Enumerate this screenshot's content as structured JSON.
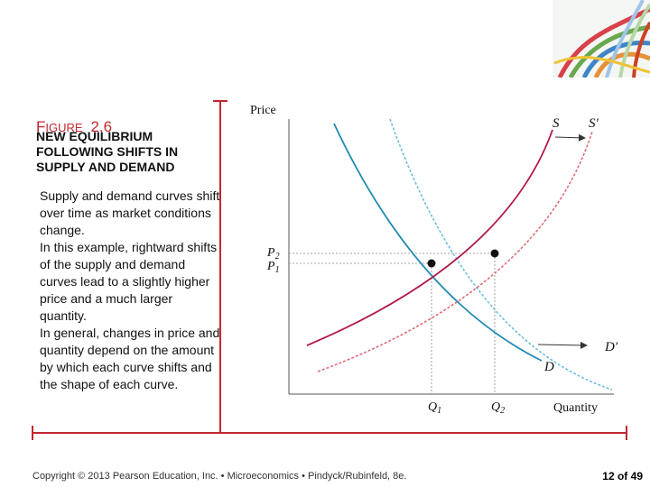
{
  "figure": {
    "title_first_letter": "F",
    "title_rest": "IGURE",
    "title_number": "2.6",
    "subtitle": "New Equilibrium Following Shifts in Supply and Demand",
    "description": [
      "Supply and demand curves shift over time as market conditions change.",
      "In this example, rightward shifts of the supply and demand curves lead to a slightly higher price and a much larger quantity.",
      "In general, changes in price and quantity depend on the amount by which each curve shifts and the shape of each curve."
    ]
  },
  "diagram": {
    "y_axis_label": "Price",
    "x_axis_label": "Quantity",
    "curves": {
      "S": "S",
      "S_prime": "S′",
      "D": "D",
      "D_prime": "D′"
    },
    "price_labels": {
      "p2": "P",
      "p2_sub": "2",
      "p1": "P",
      "p1_sub": "1"
    },
    "quantity_labels": {
      "q1": "Q",
      "q1_sub": "1",
      "q2": "Q",
      "q2_sub": "2"
    },
    "colors": {
      "supply": "#b0184a",
      "supply_shifted": "#e06a77",
      "demand": "#1f8ab3",
      "demand_shifted": "#6fbfdc",
      "frame": "#c0282f",
      "arrow": "#333333"
    }
  },
  "footer": {
    "text": "Copyright © 2013 Pearson Education, Inc. • Microeconomics • Pindyck/Rubinfeld, 8e.",
    "page": "12 of 49"
  }
}
